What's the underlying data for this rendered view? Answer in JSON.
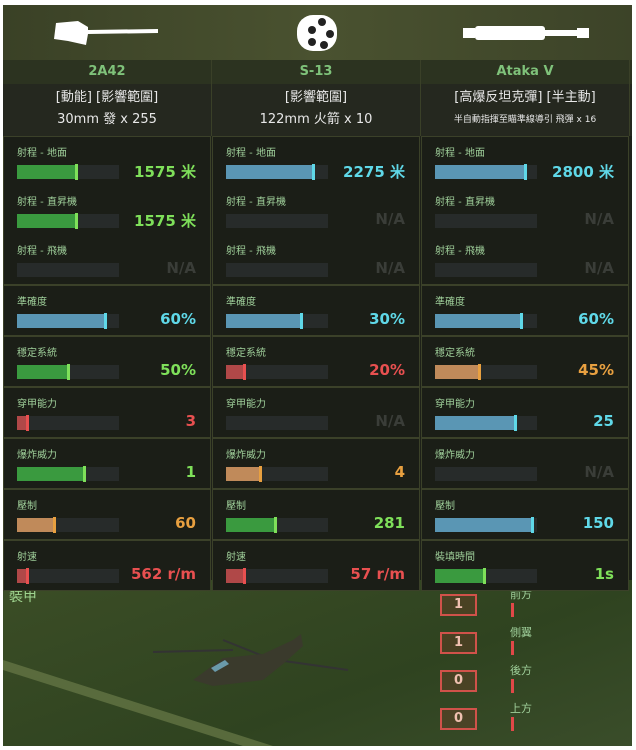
{
  "weapons": [
    {
      "name": "2A42",
      "tags": "[動能] [影響範圍]",
      "ammo": "30mm 發 x 255",
      "icon": "autocannon-icon",
      "stats": [
        {
          "label": "射程 - 地面",
          "value": "1575 米",
          "fill": 0.6,
          "bar": "#3a9a3f",
          "color": "#7fe05a"
        },
        {
          "label": "射程 - 直昇機",
          "value": "1575 米",
          "fill": 0.6,
          "bar": "#3a9a3f",
          "color": "#7fe05a"
        },
        {
          "label": "射程 - 飛機",
          "value": "N/A",
          "fill": 0,
          "bar": "#3a9a3f",
          "color": "#3a3d38"
        },
        {
          "label": "準確度",
          "value": "60%",
          "fill": 0.88,
          "bar": "#5a96b4",
          "color": "#5fd8e8"
        },
        {
          "label": "穩定系統",
          "value": "50%",
          "fill": 0.52,
          "bar": "#3a9a3f",
          "color": "#7fe05a"
        },
        {
          "label": "穿甲能力",
          "value": "3",
          "fill": 0.12,
          "bar": "#b04848",
          "color": "#e85050"
        },
        {
          "label": "爆炸威力",
          "value": "1",
          "fill": 0.68,
          "bar": "#3a9a3f",
          "color": "#7fe05a"
        },
        {
          "label": "壓制",
          "value": "60",
          "fill": 0.38,
          "bar": "#c08a5a",
          "color": "#e8a040"
        },
        {
          "label": "射速",
          "value": "562 r/m",
          "fill": 0.12,
          "bar": "#b04848",
          "color": "#e85050"
        }
      ]
    },
    {
      "name": "S-13",
      "tags": "[影響範圍]",
      "ammo": "122mm 火箭 x 10",
      "icon": "rocket-pod-icon",
      "stats": [
        {
          "label": "射程 - 地面",
          "value": "2275 米",
          "fill": 0.87,
          "bar": "#5a96b4",
          "color": "#5fd8e8"
        },
        {
          "label": "射程 - 直昇機",
          "value": "N/A",
          "fill": 0,
          "bar": "#5a96b4",
          "color": "#3a3d38"
        },
        {
          "label": "射程 - 飛機",
          "value": "N/A",
          "fill": 0,
          "bar": "#5a96b4",
          "color": "#3a3d38"
        },
        {
          "label": "準確度",
          "value": "30%",
          "fill": 0.75,
          "bar": "#5a96b4",
          "color": "#5fd8e8"
        },
        {
          "label": "穩定系統",
          "value": "20%",
          "fill": 0.2,
          "bar": "#b04848",
          "color": "#e85050"
        },
        {
          "label": "穿甲能力",
          "value": "N/A",
          "fill": 0,
          "bar": "#5a96b4",
          "color": "#3a3d38"
        },
        {
          "label": "爆炸威力",
          "value": "4",
          "fill": 0.35,
          "bar": "#c08a5a",
          "color": "#e8a040"
        },
        {
          "label": "壓制",
          "value": "281",
          "fill": 0.5,
          "bar": "#3a9a3f",
          "color": "#7fe05a"
        },
        {
          "label": "射速",
          "value": "57 r/m",
          "fill": 0.2,
          "bar": "#b04848",
          "color": "#e85050"
        }
      ]
    },
    {
      "name": "Ataka V",
      "tags": "[高爆反坦克彈] [半主動]",
      "ammo": "半自動指揮至瞄準線導引 飛彈 x 16",
      "icon": "missile-icon",
      "stats": [
        {
          "label": "射程 - 地面",
          "value": "2800 米",
          "fill": 0.9,
          "bar": "#5a96b4",
          "color": "#5fd8e8"
        },
        {
          "label": "射程 - 直昇機",
          "value": "N/A",
          "fill": 0,
          "bar": "#5a96b4",
          "color": "#3a3d38"
        },
        {
          "label": "射程 - 飛機",
          "value": "N/A",
          "fill": 0,
          "bar": "#5a96b4",
          "color": "#3a3d38"
        },
        {
          "label": "準確度",
          "value": "60%",
          "fill": 0.86,
          "bar": "#5a96b4",
          "color": "#5fd8e8"
        },
        {
          "label": "穩定系統",
          "value": "45%",
          "fill": 0.45,
          "bar": "#c08a5a",
          "color": "#e8a040"
        },
        {
          "label": "穿甲能力",
          "value": "25",
          "fill": 0.8,
          "bar": "#5a96b4",
          "color": "#5fd8e8"
        },
        {
          "label": "爆炸威力",
          "value": "N/A",
          "fill": 0,
          "bar": "#5a96b4",
          "color": "#3a3d38"
        },
        {
          "label": "壓制",
          "value": "150",
          "fill": 0.97,
          "bar": "#5a96b4",
          "color": "#5fd8e8"
        },
        {
          "label": "裝填時間",
          "value": "1s",
          "fill": 0.5,
          "bar": "#3a9a3f",
          "color": "#7fe05a"
        }
      ]
    }
  ],
  "armor": {
    "title": "裝甲",
    "sides": [
      {
        "label": "前方",
        "value": "1"
      },
      {
        "label": "側翼",
        "value": "1"
      },
      {
        "label": "後方",
        "value": "0"
      },
      {
        "label": "上方",
        "value": "0"
      }
    ]
  }
}
